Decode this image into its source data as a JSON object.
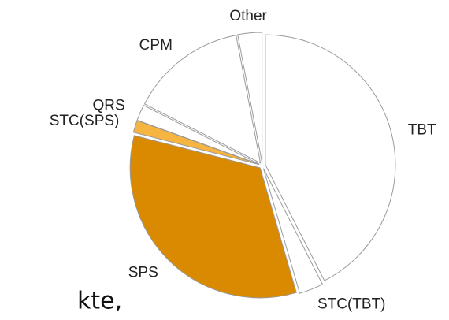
{
  "chart_data": {
    "type": "pie",
    "categories": [
      "TBT",
      "STC(TBT)",
      "SPS",
      "STC(SPS)",
      "QRS",
      "CPM",
      "Other"
    ],
    "values": [
      42.5,
      3,
      33.5,
      1.5,
      2,
      14.5,
      3
    ],
    "colors": [
      "#ffffff",
      "#ffffff",
      "#d98a00",
      "#f6b440",
      "#ffffff",
      "#ffffff",
      "#ffffff"
    ]
  },
  "fragment_text": "kte,"
}
